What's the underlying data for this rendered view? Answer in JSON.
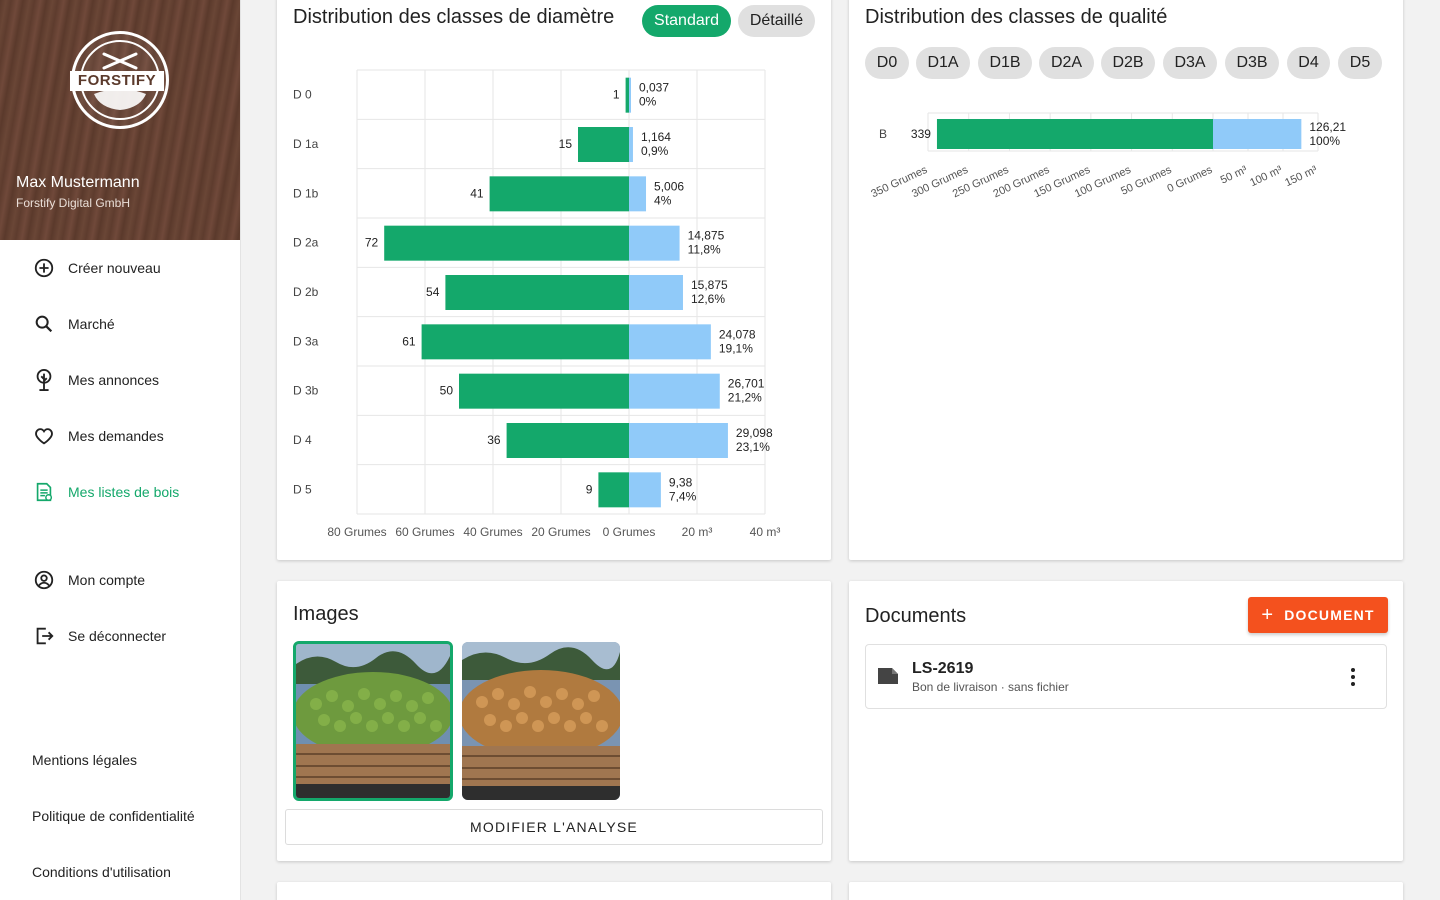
{
  "sidebar": {
    "logo_text": "FORSTIFY",
    "user_name": "Max Mustermann",
    "company": "Forstify Digital GmbH",
    "nav": [
      {
        "label": "Créer nouveau",
        "icon": "plus-circle-icon"
      },
      {
        "label": "Marché",
        "icon": "search-icon"
      },
      {
        "label": "Mes annonces",
        "icon": "tree-icon"
      },
      {
        "label": "Mes demandes",
        "icon": "heart-icon"
      },
      {
        "label": "Mes listes de bois",
        "icon": "wood-list-icon",
        "active": true
      },
      {
        "label": "Mon compte",
        "icon": "account-circle-icon"
      },
      {
        "label": "Se déconnecter",
        "icon": "logout-icon"
      }
    ],
    "footer": [
      "Mentions légales",
      "Politique de confidentialité",
      "Conditions d'utilisation"
    ]
  },
  "diameter_card": {
    "title": "Distribution des classes de diamètre",
    "toggle_standard": "Standard",
    "toggle_detailed": "Détaillé"
  },
  "quality_card": {
    "title": "Distribution des classes de qualité",
    "chips": [
      "D0",
      "D1A",
      "D1B",
      "D2A",
      "D2B",
      "D3A",
      "D3B",
      "D4",
      "D5"
    ]
  },
  "images_card": {
    "title": "Images",
    "button": "MODIFIER L'ANALYSE"
  },
  "documents_card": {
    "title": "Documents",
    "add_button": "DOCUMENT",
    "doc": {
      "name": "LS-2619",
      "subtitle": "Bon de livraison · sans fichier"
    }
  },
  "colors": {
    "green": "#14a86b",
    "blue": "#90caf9",
    "orange": "#f4511e"
  },
  "chart_data": [
    {
      "type": "bar",
      "orientation": "horizontal-diverging",
      "categories": [
        "D 0",
        "D 1a",
        "D 1b",
        "D 2a",
        "D 2b",
        "D 3a",
        "D 3b",
        "D 4",
        "D 5"
      ],
      "series": [
        {
          "values": [
            1,
            15,
            41,
            72,
            54,
            61,
            50,
            36,
            9
          ],
          "color": "#14a86b"
        },
        {
          "values": [
            0.037,
            1.164,
            5.006,
            14.875,
            15.875,
            24.078,
            26.701,
            29.098,
            9.38
          ],
          "color": "#90caf9"
        }
      ],
      "value_labels_left": [
        "1",
        "15",
        "41",
        "72",
        "54",
        "61",
        "50",
        "36",
        "9"
      ],
      "value_labels_right": [
        [
          "0,037",
          "0%"
        ],
        [
          "1,164",
          "0,9%"
        ],
        [
          "5,006",
          "4%"
        ],
        [
          "14,875",
          "11,8%"
        ],
        [
          "15,875",
          "12,6%"
        ],
        [
          "24,078",
          "19,1%"
        ],
        [
          "26,701",
          "21,2%"
        ],
        [
          "29,098",
          "23,1%"
        ],
        [
          "9,38",
          "7,4%"
        ]
      ],
      "x_ticks": [
        "80 Grumes",
        "60 Grumes",
        "40 Grumes",
        "20 Grumes",
        "0 Grumes",
        "20 m³",
        "40 m³"
      ],
      "left_range": [
        0,
        80
      ],
      "right_range": [
        0,
        40
      ],
      "grid": true
    },
    {
      "type": "bar",
      "orientation": "horizontal-diverging",
      "categories": [
        "B"
      ],
      "series": [
        {
          "values": [
            339
          ],
          "color": "#14a86b"
        },
        {
          "values": [
            126.21
          ],
          "color": "#90caf9"
        }
      ],
      "value_labels_left": [
        "339"
      ],
      "value_labels_right": [
        [
          "126,21",
          "100%"
        ]
      ],
      "x_ticks": [
        "350 Grumes",
        "300 Grumes",
        "250 Grumes",
        "200 Grumes",
        "150 Grumes",
        "100 Grumes",
        "50 Grumes",
        "0 Grumes",
        "50 m³",
        "100 m³",
        "150 m³"
      ],
      "left_range": [
        0,
        350
      ],
      "right_range": [
        0,
        150
      ],
      "grid": true
    }
  ]
}
